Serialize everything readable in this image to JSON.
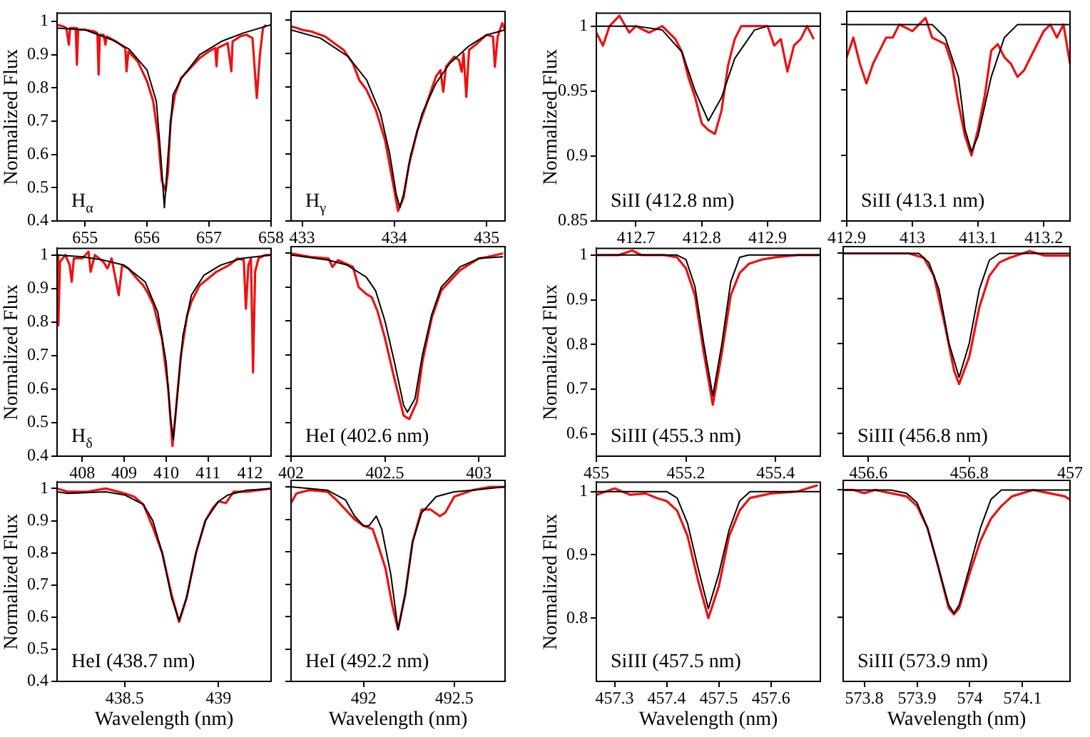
{
  "chart_data": [
    {
      "type": "line",
      "annotations": [
        "H$_{α}$"
      ],
      "ylabel": "Normalized Flux",
      "xlim": [
        654.55,
        658
      ],
      "xticks": [
        655,
        656,
        657,
        658
      ],
      "ylim": [
        0.4,
        1.025
      ],
      "yticks": [
        0.4,
        0.5,
        0.6,
        0.7,
        0.8,
        0.9,
        1
      ],
      "series": [
        {
          "color": "#ee1111",
          "x": [
            654.55,
            654.65,
            654.7,
            654.74,
            654.76,
            654.85,
            654.87,
            654.89,
            655.0,
            655.15,
            655.2,
            655.22,
            655.24,
            655.3,
            655.33,
            655.35,
            655.5,
            655.65,
            655.67,
            655.7,
            655.85,
            655.9,
            656.0,
            656.1,
            656.18,
            656.24,
            656.3,
            656.34,
            656.38,
            656.45,
            656.55,
            656.7,
            656.85,
            657.0,
            657.1,
            657.12,
            657.14,
            657.3,
            657.36,
            657.38,
            657.5,
            657.6,
            657.7,
            657.77,
            657.82,
            657.87,
            657.92
          ],
          "values": [
            0.99,
            0.985,
            0.98,
            0.93,
            0.98,
            0.98,
            0.87,
            0.975,
            0.975,
            0.97,
            0.965,
            0.84,
            0.96,
            0.96,
            0.93,
            0.955,
            0.94,
            0.92,
            0.85,
            0.91,
            0.88,
            0.86,
            0.82,
            0.76,
            0.65,
            0.52,
            0.49,
            0.55,
            0.7,
            0.78,
            0.83,
            0.86,
            0.89,
            0.91,
            0.92,
            0.865,
            0.92,
            0.935,
            0.85,
            0.94,
            0.955,
            0.96,
            0.95,
            0.77,
            0.9,
            0.98,
            0.99
          ]
        },
        {
          "color": "#000000",
          "x": [
            654.55,
            655.0,
            655.43,
            655.71,
            656.0,
            656.15,
            656.22,
            656.28,
            656.34,
            656.42,
            656.56,
            656.85,
            657.2,
            657.55,
            658.0
          ],
          "values": [
            0.98,
            0.975,
            0.945,
            0.917,
            0.854,
            0.76,
            0.6,
            0.44,
            0.6,
            0.78,
            0.83,
            0.9,
            0.94,
            0.965,
            0.99
          ]
        }
      ]
    },
    {
      "type": "line",
      "annotations": [
        "H$_{γ}$"
      ],
      "tick_labels": "x",
      "xlim": [
        432.88,
        435.2
      ],
      "xticks": [
        433,
        434,
        435
      ],
      "ylim": [
        0.4,
        1.025
      ],
      "yticks": [
        0.4,
        0.5,
        0.6,
        0.7,
        0.8,
        0.9,
        1
      ],
      "series": [
        {
          "color": "#ee1111",
          "x": [
            432.88,
            432.95,
            433.0,
            433.1,
            433.25,
            433.35,
            433.45,
            433.55,
            433.62,
            433.7,
            433.8,
            433.9,
            433.98,
            434.04,
            434.1,
            434.16,
            434.25,
            434.35,
            434.45,
            434.5,
            434.53,
            434.56,
            434.65,
            434.7,
            434.73,
            434.75,
            434.78,
            434.81,
            434.9,
            435.0,
            435.07,
            435.09,
            435.12,
            435.17,
            435.2
          ],
          "values": [
            0.98,
            0.975,
            0.97,
            0.965,
            0.95,
            0.93,
            0.91,
            0.87,
            0.82,
            0.79,
            0.73,
            0.64,
            0.52,
            0.43,
            0.47,
            0.57,
            0.67,
            0.75,
            0.83,
            0.85,
            0.785,
            0.86,
            0.89,
            0.88,
            0.845,
            0.9,
            0.77,
            0.91,
            0.93,
            0.955,
            0.95,
            0.86,
            0.95,
            0.99,
            0.97
          ]
        },
        {
          "color": "#000000",
          "x": [
            432.88,
            433.2,
            433.5,
            433.7,
            433.85,
            433.95,
            434.02,
            434.06,
            434.1,
            434.18,
            434.3,
            434.45,
            434.6,
            434.8,
            435.0,
            435.2
          ],
          "values": [
            0.97,
            0.945,
            0.89,
            0.82,
            0.72,
            0.6,
            0.48,
            0.44,
            0.48,
            0.6,
            0.72,
            0.81,
            0.87,
            0.92,
            0.955,
            0.97
          ]
        }
      ]
    },
    {
      "type": "line",
      "annotations": [
        "SiII (412.8 nm)"
      ],
      "ylabel": "Normalized Flux",
      "xlim": [
        412.64,
        412.98
      ],
      "xticks": [
        412.7,
        412.8,
        412.9
      ],
      "ylim": [
        0.85,
        1.01
      ],
      "yticks": [
        0.85,
        0.9,
        0.95,
        1
      ],
      "series": [
        {
          "color": "#ee1111",
          "x": [
            412.64,
            412.65,
            412.66,
            412.675,
            412.69,
            412.7,
            412.72,
            412.74,
            412.76,
            412.77,
            412.78,
            412.79,
            412.8,
            412.81,
            412.82,
            412.83,
            412.84,
            412.85,
            412.86,
            412.88,
            412.9,
            412.91,
            412.92,
            412.93,
            412.94,
            412.95,
            412.96,
            412.97
          ],
          "values": [
            0.995,
            0.985,
            1.0,
            1.008,
            0.995,
            1.0,
            0.995,
            1.0,
            0.99,
            0.98,
            0.96,
            0.945,
            0.925,
            0.92,
            0.917,
            0.935,
            0.97,
            0.99,
            1.0,
            1.0,
            1.0,
            0.985,
            0.99,
            0.965,
            0.985,
            0.99,
            1.0,
            0.99
          ]
        },
        {
          "color": "#000000",
          "x": [
            412.64,
            412.7,
            412.74,
            412.77,
            412.79,
            412.81,
            412.83,
            412.85,
            412.88,
            412.9,
            412.98
          ],
          "values": [
            1.0,
            1.0,
            0.997,
            0.98,
            0.95,
            0.927,
            0.945,
            0.975,
            0.997,
            1.0,
            1.0
          ]
        }
      ]
    },
    {
      "type": "line",
      "annotations": [
        "SiII (413.1 nm)"
      ],
      "tick_labels": "x",
      "xlim": [
        412.9,
        413.24
      ],
      "xticks": [
        412.9,
        413,
        413.1,
        413.2
      ],
      "ylim": [
        0.85,
        1.01
      ],
      "yticks": [
        0.85,
        0.9,
        0.95,
        1
      ],
      "series": [
        {
          "color": "#ee1111",
          "x": [
            412.9,
            412.91,
            412.92,
            412.93,
            412.94,
            412.95,
            412.96,
            412.97,
            412.98,
            413.0,
            413.02,
            413.03,
            413.05,
            413.06,
            413.07,
            413.08,
            413.09,
            413.1,
            413.11,
            413.12,
            413.13,
            413.14,
            413.15,
            413.16,
            413.17,
            413.18,
            413.2,
            413.21,
            413.22,
            413.23,
            413.24
          ],
          "values": [
            0.975,
            0.99,
            0.97,
            0.955,
            0.97,
            0.98,
            0.99,
            0.99,
            1.0,
            0.995,
            1.005,
            0.99,
            0.985,
            0.97,
            0.94,
            0.915,
            0.9,
            0.92,
            0.945,
            0.98,
            0.985,
            0.975,
            0.97,
            0.96,
            0.965,
            0.975,
            0.995,
            1.0,
            0.99,
            1.0,
            0.97
          ]
        },
        {
          "color": "#000000",
          "x": [
            412.9,
            413.03,
            413.05,
            413.07,
            413.08,
            413.09,
            413.1,
            413.12,
            413.14,
            413.16,
            413.24
          ],
          "values": [
            1.0,
            1.0,
            0.99,
            0.96,
            0.92,
            0.903,
            0.915,
            0.96,
            0.99,
            1.0,
            1.0
          ]
        }
      ]
    },
    {
      "type": "line",
      "annotations": [
        "H$_{δ}$"
      ],
      "ylabel": "Normalized Flux",
      "xlim": [
        407.4,
        412.5
      ],
      "xticks": [
        408,
        409,
        410,
        411,
        412
      ],
      "ylim": [
        0.4,
        1.02
      ],
      "yticks": [
        0.4,
        0.5,
        0.6,
        0.7,
        0.8,
        0.9,
        1
      ],
      "series": [
        {
          "color": "#ee1111",
          "x": [
            407.4,
            407.43,
            407.47,
            407.6,
            407.7,
            407.75,
            407.8,
            408.0,
            408.15,
            408.2,
            408.3,
            408.5,
            408.6,
            408.7,
            408.87,
            408.95,
            409.1,
            409.3,
            409.45,
            409.55,
            409.7,
            409.9,
            410.05,
            410.15,
            410.22,
            410.35,
            410.5,
            410.6,
            410.8,
            411.0,
            411.2,
            411.5,
            411.7,
            411.85,
            411.9,
            411.96,
            412.02,
            412.07,
            412.12,
            412.2,
            412.35,
            412.5
          ],
          "values": [
            1.0,
            0.79,
            0.98,
            1.0,
            0.97,
            0.92,
            0.99,
            0.99,
            1.01,
            0.95,
            1.0,
            0.98,
            0.96,
            0.99,
            0.88,
            0.97,
            0.96,
            0.93,
            0.91,
            0.89,
            0.85,
            0.75,
            0.6,
            0.43,
            0.52,
            0.7,
            0.82,
            0.86,
            0.91,
            0.93,
            0.95,
            0.97,
            0.99,
            0.985,
            0.84,
            0.97,
            0.99,
            0.65,
            0.95,
            0.99,
            1.0,
            1.0
          ]
        },
        {
          "color": "#000000",
          "x": [
            407.4,
            408,
            408.5,
            409,
            409.5,
            409.8,
            410.0,
            410.1,
            410.17,
            410.25,
            410.4,
            410.6,
            410.9,
            411.3,
            411.8,
            412.5
          ],
          "values": [
            1.0,
            0.995,
            0.985,
            0.97,
            0.92,
            0.83,
            0.68,
            0.52,
            0.45,
            0.56,
            0.76,
            0.88,
            0.94,
            0.97,
            0.99,
            1.0
          ]
        }
      ]
    },
    {
      "type": "line",
      "annotations": [
        "HeI (402.6 nm)"
      ],
      "tick_labels": "x",
      "xlim": [
        402,
        403.14
      ],
      "xticks": [
        402,
        402.5,
        403
      ],
      "ylim": [
        0.4,
        1.02
      ],
      "yticks": [
        0.4,
        0.5,
        0.6,
        0.7,
        0.8,
        0.9,
        1
      ],
      "series": [
        {
          "color": "#ee1111",
          "x": [
            402.0,
            402.1,
            402.2,
            402.22,
            402.25,
            402.33,
            402.36,
            402.4,
            402.43,
            402.46,
            402.5,
            402.55,
            402.6,
            402.63,
            402.67,
            402.7,
            402.75,
            402.8,
            402.9,
            403.0,
            403.05,
            403.13
          ],
          "values": [
            1.0,
            0.99,
            0.985,
            0.96,
            0.98,
            0.96,
            0.9,
            0.88,
            0.87,
            0.83,
            0.75,
            0.63,
            0.52,
            0.51,
            0.56,
            0.68,
            0.81,
            0.89,
            0.95,
            0.985,
            0.99,
            1.0
          ]
        },
        {
          "color": "#000000",
          "x": [
            402.0,
            402.2,
            402.3,
            402.4,
            402.45,
            402.5,
            402.55,
            402.6,
            402.62,
            402.66,
            402.7,
            402.75,
            402.8,
            402.9,
            403.0,
            403.13
          ],
          "values": [
            0.995,
            0.98,
            0.965,
            0.93,
            0.89,
            0.8,
            0.68,
            0.55,
            0.53,
            0.57,
            0.7,
            0.82,
            0.9,
            0.96,
            0.985,
            0.99
          ]
        }
      ]
    },
    {
      "type": "line",
      "annotations": [
        "SiIII (455.3 nm)"
      ],
      "ylabel": "Normalized Flux",
      "xlim": [
        455,
        455.5
      ],
      "xticks": [
        455,
        455.2,
        455.4
      ],
      "ylim": [
        0.55,
        1.015
      ],
      "yticks": [
        0.6,
        0.7,
        0.8,
        0.9,
        1
      ],
      "series": [
        {
          "color": "#ee1111",
          "x": [
            455.0,
            455.05,
            455.08,
            455.1,
            455.15,
            455.18,
            455.2,
            455.22,
            455.24,
            455.26,
            455.28,
            455.3,
            455.32,
            455.34,
            455.37,
            455.4,
            455.45,
            455.5
          ],
          "values": [
            1.0,
            1.0,
            1.01,
            1.0,
            1.0,
            0.995,
            0.97,
            0.91,
            0.78,
            0.665,
            0.78,
            0.91,
            0.96,
            0.98,
            0.99,
            0.995,
            1.0,
            1.0
          ]
        },
        {
          "color": "#000000",
          "x": [
            455.0,
            455.18,
            455.2,
            455.22,
            455.24,
            455.26,
            455.28,
            455.3,
            455.32,
            455.34,
            455.5
          ],
          "values": [
            1.0,
            1.0,
            0.99,
            0.93,
            0.8,
            0.685,
            0.8,
            0.94,
            0.995,
            1.0,
            1.0
          ]
        }
      ]
    },
    {
      "type": "line",
      "annotations": [
        "SiIII (456.8 nm)"
      ],
      "tick_labels": "x",
      "xlim": [
        456.55,
        457
      ],
      "xticks": [
        456.6,
        456.8,
        457
      ],
      "ylim": [
        0.55,
        1.015
      ],
      "yticks": [
        0.6,
        0.7,
        0.8,
        0.9,
        1
      ],
      "series": [
        {
          "color": "#ee1111",
          "x": [
            456.55,
            456.6,
            456.68,
            456.71,
            456.73,
            456.75,
            456.77,
            456.78,
            456.8,
            456.82,
            456.84,
            456.86,
            456.88,
            456.92,
            456.95,
            457.0
          ],
          "values": [
            1.0,
            1.0,
            1.0,
            0.99,
            0.95,
            0.85,
            0.74,
            0.71,
            0.77,
            0.88,
            0.95,
            0.98,
            0.99,
            1.005,
            0.995,
            0.995
          ]
        },
        {
          "color": "#000000",
          "x": [
            456.55,
            456.7,
            456.72,
            456.74,
            456.76,
            456.78,
            456.8,
            456.82,
            456.84,
            456.86,
            457.0
          ],
          "values": [
            1.0,
            1.0,
            0.98,
            0.92,
            0.8,
            0.725,
            0.8,
            0.92,
            0.985,
            1.0,
            1.0
          ]
        }
      ]
    },
    {
      "type": "line",
      "annotations": [
        "HeI (438.7 nm)"
      ],
      "ylabel": "Normalized Flux",
      "xlabel": "Wavelength (nm)",
      "xlim": [
        438.14,
        439.28
      ],
      "xticks": [
        438.5,
        439
      ],
      "ylim": [
        0.4,
        1.02
      ],
      "yticks": [
        0.4,
        0.5,
        0.6,
        0.7,
        0.8,
        0.9,
        1
      ],
      "series": [
        {
          "color": "#ee1111",
          "x": [
            438.14,
            438.2,
            438.3,
            438.4,
            438.5,
            438.55,
            438.6,
            438.65,
            438.7,
            438.75,
            438.79,
            438.83,
            438.88,
            438.93,
            438.97,
            439.0,
            439.04,
            439.08,
            439.15,
            439.28
          ],
          "values": [
            1.0,
            0.99,
            0.99,
            1.0,
            0.985,
            0.975,
            0.95,
            0.88,
            0.8,
            0.67,
            0.585,
            0.66,
            0.8,
            0.9,
            0.94,
            0.96,
            0.955,
            0.99,
            0.99,
            1.0
          ]
        },
        {
          "color": "#000000",
          "x": [
            438.14,
            438.2,
            438.4,
            438.5,
            438.6,
            438.65,
            438.7,
            438.75,
            438.79,
            438.83,
            438.88,
            438.93,
            439.0,
            439.05,
            439.15,
            439.28
          ],
          "values": [
            0.99,
            0.985,
            0.99,
            0.98,
            0.95,
            0.9,
            0.8,
            0.66,
            0.59,
            0.66,
            0.8,
            0.9,
            0.96,
            0.98,
            0.995,
            1.0
          ]
        }
      ]
    },
    {
      "type": "line",
      "annotations": [
        "HeI (492.2 nm)"
      ],
      "tick_labels": "x",
      "xlabel": "Wavelength (nm)",
      "xlim": [
        491.6,
        492.78
      ],
      "xticks": [
        492,
        492.5
      ],
      "ylim": [
        0.4,
        1.02
      ],
      "yticks": [
        0.4,
        0.5,
        0.6,
        0.7,
        0.8,
        0.9,
        1
      ],
      "series": [
        {
          "color": "#ee1111",
          "x": [
            491.6,
            491.63,
            491.7,
            491.8,
            491.85,
            491.9,
            491.95,
            492.0,
            492.05,
            492.08,
            492.12,
            492.16,
            492.19,
            492.23,
            492.27,
            492.32,
            492.37,
            492.42,
            492.45,
            492.5,
            492.6,
            492.7,
            492.78
          ],
          "values": [
            0.95,
            0.98,
            0.99,
            0.985,
            0.96,
            0.93,
            0.9,
            0.88,
            0.87,
            0.82,
            0.75,
            0.63,
            0.56,
            0.67,
            0.83,
            0.93,
            0.93,
            0.91,
            0.92,
            0.97,
            0.99,
            1.0,
            1.0
          ]
        },
        {
          "color": "#000000",
          "x": [
            491.6,
            491.8,
            491.9,
            491.95,
            492.0,
            492.03,
            492.07,
            492.1,
            492.15,
            492.19,
            492.23,
            492.27,
            492.32,
            492.4,
            492.5,
            492.6,
            492.78
          ],
          "values": [
            1.0,
            0.99,
            0.96,
            0.91,
            0.88,
            0.88,
            0.91,
            0.87,
            0.73,
            0.56,
            0.67,
            0.83,
            0.92,
            0.97,
            0.985,
            0.99,
            1.0
          ]
        }
      ]
    },
    {
      "type": "line",
      "annotations": [
        "SiIII (457.5 nm)"
      ],
      "ylabel": "Normalized Flux",
      "xlabel": "Wavelength (nm)",
      "xlim": [
        457.265,
        457.695
      ],
      "xticks": [
        457.3,
        457.4,
        457.5,
        457.6
      ],
      "ylim": [
        0.7,
        1.015
      ],
      "yticks": [
        0.8,
        0.9,
        1
      ],
      "series": [
        {
          "color": "#ee1111",
          "x": [
            457.265,
            457.3,
            457.33,
            457.36,
            457.38,
            457.4,
            457.42,
            457.44,
            457.46,
            457.48,
            457.5,
            457.52,
            457.54,
            457.56,
            457.6,
            457.65,
            457.69
          ],
          "values": [
            0.995,
            1.005,
            0.995,
            0.997,
            0.99,
            0.985,
            0.97,
            0.93,
            0.86,
            0.8,
            0.85,
            0.93,
            0.97,
            0.99,
            0.997,
            1.0,
            1.01
          ]
        },
        {
          "color": "#000000",
          "x": [
            457.265,
            457.4,
            457.42,
            457.44,
            457.46,
            457.48,
            457.5,
            457.52,
            457.54,
            457.56,
            457.695
          ],
          "values": [
            1.0,
            1.0,
            0.99,
            0.95,
            0.88,
            0.815,
            0.87,
            0.94,
            0.985,
            1.0,
            1.0
          ]
        }
      ]
    },
    {
      "type": "line",
      "annotations": [
        "SiIII (573.9 nm)"
      ],
      "tick_labels": "x",
      "xlabel": "Wavelength (nm)",
      "xlim": [
        573.76,
        574.19
      ],
      "xticks": [
        573.8,
        573.9,
        574,
        574.1
      ],
      "ylim": [
        0.7,
        1.015
      ],
      "yticks": [
        0.8,
        0.9,
        1
      ],
      "series": [
        {
          "color": "#ee1111",
          "x": [
            573.76,
            573.78,
            573.8,
            573.82,
            573.85,
            573.88,
            573.9,
            573.92,
            573.94,
            573.96,
            573.97,
            573.98,
            574.0,
            574.02,
            574.04,
            574.06,
            574.08,
            574.1,
            574.12,
            574.15,
            574.18,
            574.19
          ],
          "values": [
            1.0,
            1.0,
            0.995,
            1.0,
            0.995,
            0.99,
            0.975,
            0.94,
            0.88,
            0.815,
            0.805,
            0.815,
            0.87,
            0.92,
            0.955,
            0.975,
            0.99,
            0.995,
            1.0,
            0.995,
            0.99,
            0.985
          ]
        },
        {
          "color": "#000000",
          "x": [
            573.76,
            573.85,
            573.88,
            573.9,
            573.92,
            573.94,
            573.96,
            573.97,
            573.98,
            574.0,
            574.02,
            574.04,
            574.06,
            574.19
          ],
          "values": [
            1.0,
            1.0,
            0.995,
            0.98,
            0.94,
            0.88,
            0.82,
            0.807,
            0.82,
            0.88,
            0.94,
            0.985,
            1.0,
            1.0
          ]
        }
      ]
    }
  ]
}
